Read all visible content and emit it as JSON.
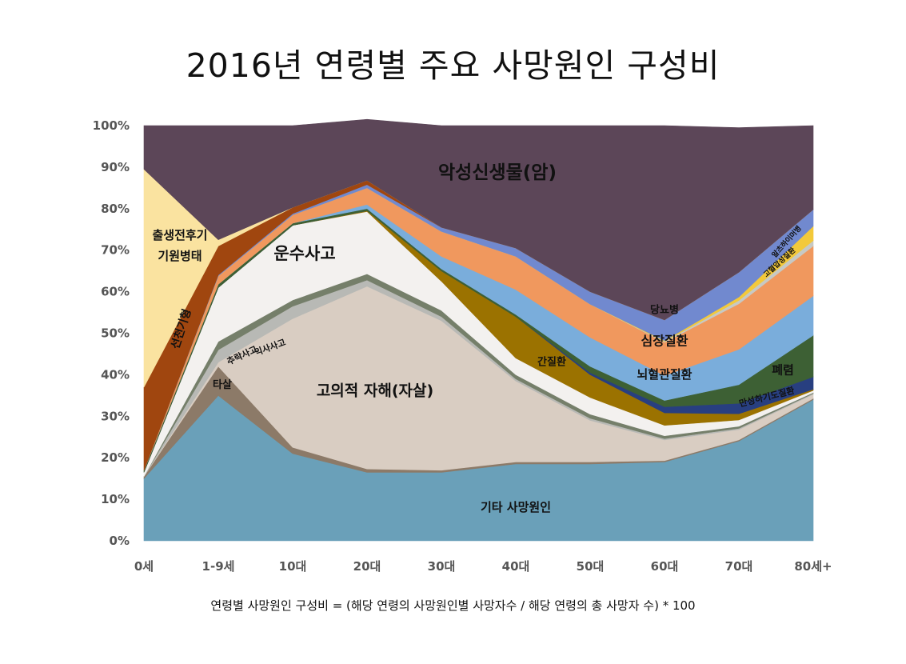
{
  "title": "2016년 연령별 주요 사망원인 구성비",
  "formula": "연령별 사망원인 구성비 = (해당 연령의 사망원인별 사망자수 / 해당 연령의 총 사망자 수) * 100",
  "chart_data": {
    "type": "area",
    "stacked": true,
    "percent": true,
    "categories": [
      "0세",
      "1-9세",
      "10대",
      "20대",
      "30대",
      "40대",
      "50대",
      "60대",
      "70대",
      "80세+"
    ],
    "yticks": [
      "0%",
      "10%",
      "20%",
      "30%",
      "40%",
      "50%",
      "60%",
      "70%",
      "80%",
      "90%",
      "100%"
    ],
    "ylim": [
      0,
      100
    ],
    "grid": false,
    "legend": "none",
    "series": [
      {
        "name": "기타 사망원인",
        "color": "#6aa0b9",
        "values": [
          15,
          35,
          21,
          16.5,
          16.5,
          18.5,
          18.5,
          19,
          24,
          34
        ]
      },
      {
        "name": "타살",
        "color": "#8c7a68",
        "values": [
          0.5,
          7,
          1.5,
          0.8,
          0.5,
          0.5,
          0.5,
          0.3,
          0.3,
          0.3
        ]
      },
      {
        "name": "고의적 자해(자살)",
        "color": "#d9cdc2",
        "values": [
          0,
          1,
          31,
          44,
          36,
          19.5,
          10,
          5,
          2.5,
          1
        ]
      },
      {
        "name": "익사사고",
        "color": "#b8b9b5",
        "values": [
          0,
          3,
          3,
          1.5,
          1,
          0.5,
          0.5,
          0.3,
          0.3,
          0.2
        ]
      },
      {
        "name": "추락사고",
        "color": "#757f6a",
        "values": [
          0,
          2,
          1.5,
          1.5,
          1.5,
          1,
          1,
          0.7,
          0.5,
          0.2
        ]
      },
      {
        "name": "운수사고",
        "color": "#f3f1ef",
        "values": [
          1,
          13,
          18,
          15,
          7,
          4,
          4,
          2.5,
          1.5,
          0.5
        ]
      },
      {
        "name": "간질환",
        "color": "#9b7200",
        "values": [
          0,
          0,
          0,
          0.2,
          2.5,
          10,
          5.5,
          3,
          1.5,
          0.3
        ]
      },
      {
        "name": "만성하기도질환",
        "color": "#283f80",
        "values": [
          0,
          0,
          0,
          0,
          0,
          0,
          0.5,
          1.5,
          2.5,
          3
        ]
      },
      {
        "name": "폐렴",
        "color": "#3d6034",
        "values": [
          0.5,
          0.8,
          0.5,
          0.5,
          0.5,
          0.5,
          1.5,
          1.5,
          4.5,
          10
        ]
      },
      {
        "name": "뇌혈관질환",
        "color": "#7aaddb",
        "values": [
          0,
          0,
          0,
          1,
          3,
          6,
          7,
          6,
          8.5,
          9.5
        ]
      },
      {
        "name": "심장질환",
        "color": "#f0985e",
        "values": [
          0,
          2,
          2,
          4,
          6,
          8,
          8,
          8,
          11,
          12
        ]
      },
      {
        "name": "고혈압성질환",
        "color": "#c7c9c4",
        "values": [
          0,
          0,
          0,
          0,
          0,
          0,
          0,
          0.2,
          0.8,
          1.3
        ]
      },
      {
        "name": "알츠하이머병",
        "color": "#f3c93a",
        "values": [
          0,
          0,
          0,
          0,
          0,
          0,
          0,
          0.2,
          0.8,
          3.5
        ]
      },
      {
        "name": "당뇨병",
        "color": "#7189cf",
        "values": [
          0,
          0.2,
          0.3,
          0.8,
          1,
          2,
          3,
          5,
          6,
          4
        ]
      },
      {
        "name": "선천기형",
        "color": "#a0460f",
        "values": [
          20,
          7,
          1.5,
          1,
          0,
          0,
          0,
          0,
          0,
          0
        ]
      },
      {
        "name": "출생전후기 기원병태",
        "color": "#fae3a0",
        "values": [
          52.5,
          1.5,
          0,
          0,
          0,
          0,
          0,
          0,
          0,
          0
        ]
      },
      {
        "name": "악성신생물(암)",
        "color": "#5c4658",
        "values": [
          10.5,
          27.5,
          19.7,
          14.7,
          24.5,
          29.5,
          40,
          46.8,
          34.8,
          20.2
        ]
      }
    ],
    "labels": [
      {
        "text": "악성신생물(암)",
        "x": "30대",
        "y": 88.5
      },
      {
        "text": "운수사고",
        "x": "10대",
        "y": 69
      },
      {
        "text": "고의적 자해(자살)",
        "x": "20대",
        "y": 36
      },
      {
        "text": "기타 사망원인",
        "x": "40대",
        "y": 8
      },
      {
        "text": "출생전후기",
        "x": "0세",
        "y": 73.5
      },
      {
        "text": "기원병태",
        "x": "0세",
        "y": 68.5
      },
      {
        "text": "선천기형",
        "x": "0세",
        "y": 51
      },
      {
        "text": "타살",
        "x": "1-9세",
        "y": 37.5
      },
      {
        "text": "추락사고",
        "x": "1-9세",
        "y": 48
      },
      {
        "text": "익사사고",
        "x": "1-9세",
        "y": 48
      },
      {
        "text": "간질환",
        "x": "40대",
        "y": 43
      },
      {
        "text": "당뇨병",
        "x": "60대",
        "y": 55.5
      },
      {
        "text": "심장질환",
        "x": "60대",
        "y": 48
      },
      {
        "text": "뇌혈관질환",
        "x": "60대",
        "y": 40
      },
      {
        "text": "폐렴",
        "x": "80세+",
        "y": 41
      },
      {
        "text": "만성하기도질환",
        "x": "80세+",
        "y": 34.5
      },
      {
        "text": "고혈압성질환",
        "x": "80세+",
        "y": 67
      },
      {
        "text": "알츠하이머병",
        "x": "80세+",
        "y": 72
      }
    ]
  }
}
